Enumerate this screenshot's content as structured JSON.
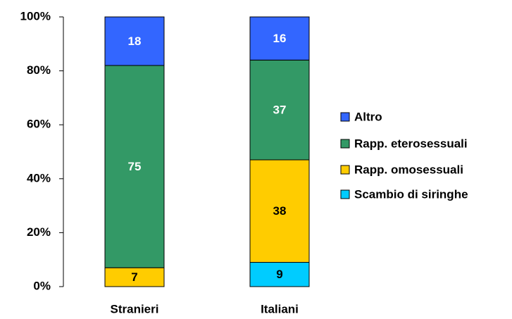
{
  "chart_data": {
    "type": "stacked_bar",
    "categories": [
      "Stranieri",
      "Italiani"
    ],
    "series": [
      {
        "name": "Scambio di siringhe",
        "color": "#00ccff",
        "label_color": "#000000",
        "values": [
          0,
          9
        ]
      },
      {
        "name": "Rapp. omosessuali",
        "color": "#ffcc00",
        "label_color": "#000000",
        "values": [
          7,
          38
        ]
      },
      {
        "name": "Rapp. eterosessuali",
        "color": "#339966",
        "label_color": "#ffffff",
        "values": [
          75,
          37
        ]
      },
      {
        "name": "Altro",
        "color": "#3366ff",
        "label_color": "#ffffff",
        "values": [
          18,
          16
        ]
      }
    ],
    "ylim": [
      0,
      100
    ],
    "yticks": [
      {
        "value": 0,
        "label": "0%"
      },
      {
        "value": 20,
        "label": "20%"
      },
      {
        "value": 40,
        "label": "40%"
      },
      {
        "value": 60,
        "label": "60%"
      },
      {
        "value": 80,
        "label": "80%"
      },
      {
        "value": 100,
        "label": "100%"
      }
    ],
    "legend": "right"
  }
}
